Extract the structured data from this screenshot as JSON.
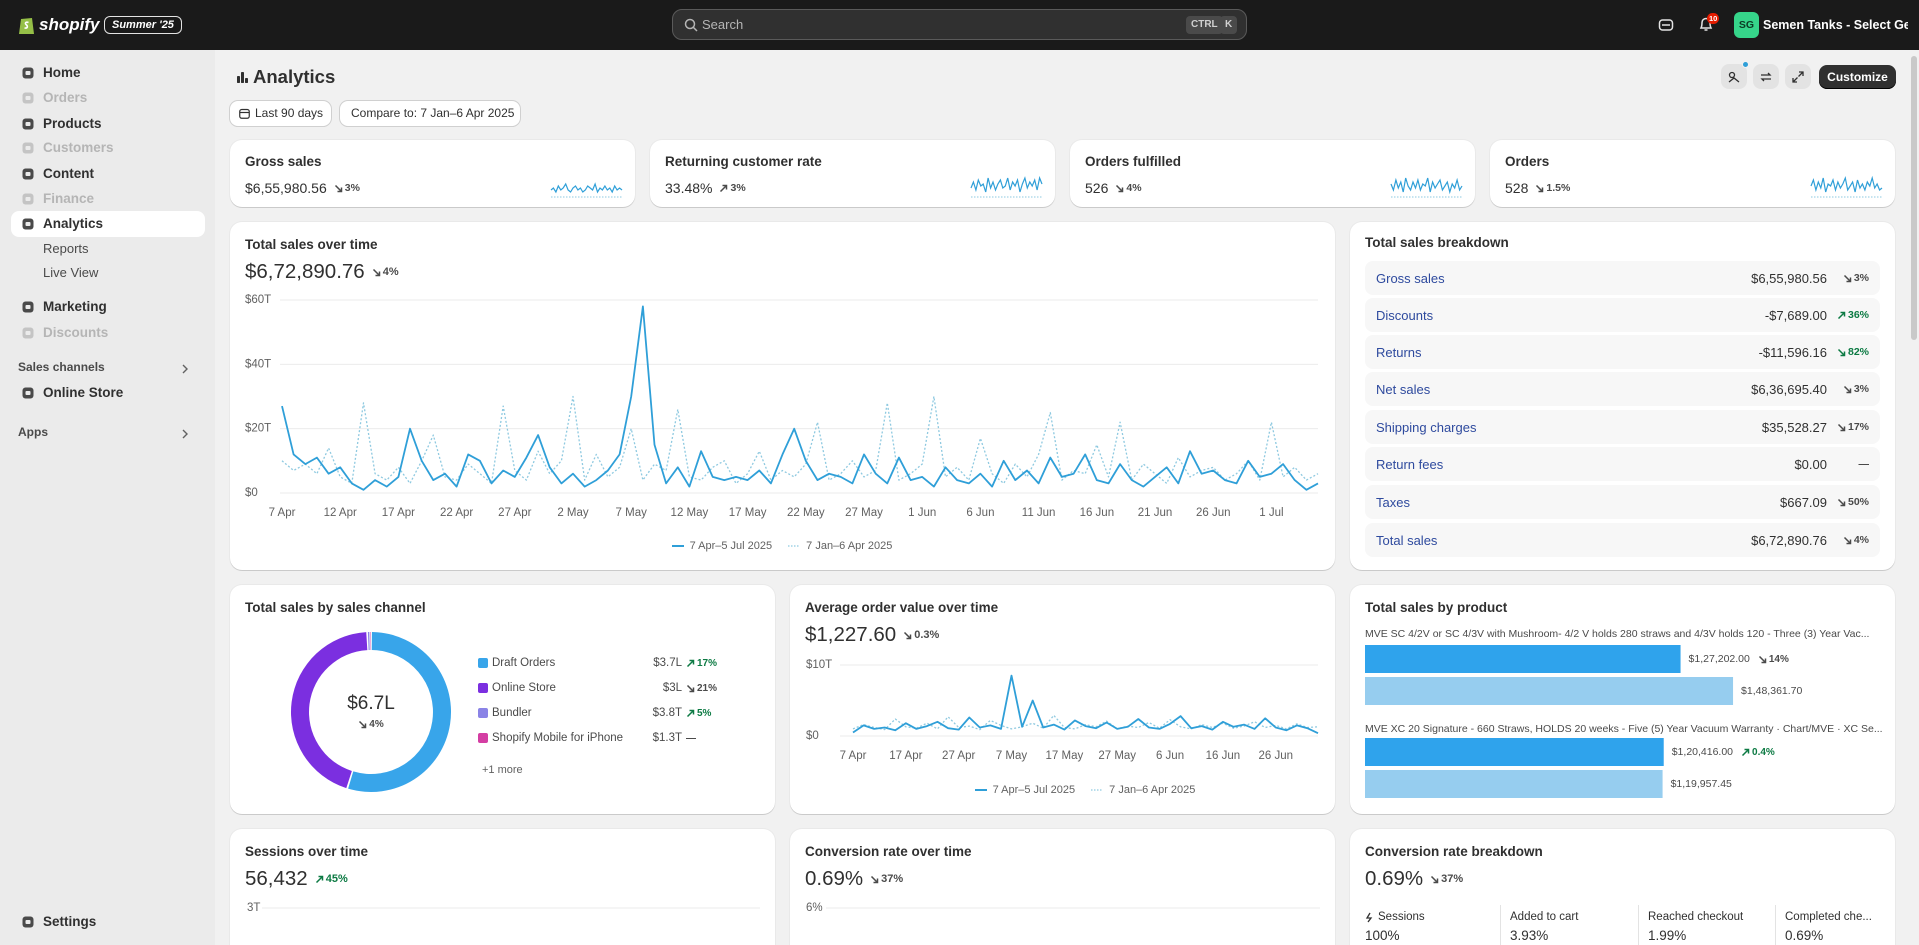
{
  "topbar": {
    "brand": "shopify",
    "badge": "Summer '25",
    "search": "Search",
    "shortcut": [
      "CTRL",
      "K"
    ],
    "notifications": 10,
    "avatar": "SG",
    "store": "Semen Tanks - Select Ge..."
  },
  "nav": [
    {
      "label": "Home"
    },
    {
      "label": "Orders",
      "disabled": true
    },
    {
      "label": "Products"
    },
    {
      "label": "Customers",
      "disabled": true
    },
    {
      "label": "Content"
    },
    {
      "label": "Finance",
      "disabled": true
    },
    {
      "label": "Analytics",
      "selected": true,
      "children": [
        "Reports",
        "Live View"
      ]
    },
    {
      "label": "Marketing"
    },
    {
      "label": "Discounts",
      "disabled": true
    }
  ],
  "sales_channels": {
    "title": "Sales channels",
    "items": [
      "Online Store"
    ]
  },
  "apps": "Apps",
  "settings": "Settings",
  "header": {
    "title": "Analytics",
    "date_range": "Last 90 days",
    "compare": "Compare to: 7 Jan–6 Apr 2025",
    "customize": "Customize"
  },
  "kpis": [
    {
      "title": "Gross sales",
      "value": "$6,55,980.56",
      "delta": {
        "text": "3%",
        "dir": "down",
        "tone": "neutral"
      },
      "color": "#2f9fd8",
      "ylim": [
        0,
        10
      ],
      "trend": [
        3,
        4,
        2,
        5,
        3,
        4,
        6,
        3,
        2,
        4,
        5,
        3,
        4,
        2,
        3,
        5,
        4,
        3,
        6,
        2,
        4,
        3,
        5,
        3,
        4,
        2,
        5,
        3,
        4,
        3
      ]
    },
    {
      "title": "Returning customer rate",
      "value": "33.48%",
      "delta": {
        "text": "3%",
        "dir": "up",
        "tone": "neutral"
      },
      "color": "#2f9fd8",
      "ylim": [
        0,
        10
      ],
      "trend": [
        4,
        7,
        3,
        8,
        5,
        6,
        2,
        9,
        4,
        7,
        3,
        6,
        8,
        4,
        5,
        9,
        3,
        7,
        5,
        8,
        2,
        6,
        9,
        4,
        7,
        5,
        8,
        3,
        9,
        6
      ]
    },
    {
      "title": "Orders fulfilled",
      "value": "526",
      "delta": {
        "text": "4%",
        "dir": "down",
        "tone": "neutral"
      },
      "color": "#2f9fd8",
      "ylim": [
        0,
        10
      ],
      "trend": [
        6,
        3,
        8,
        4,
        7,
        2,
        9,
        5,
        3,
        7,
        4,
        8,
        3,
        6,
        5,
        9,
        2,
        7,
        4,
        6,
        8,
        3,
        5,
        7,
        2,
        6,
        4,
        8,
        3,
        5
      ]
    },
    {
      "title": "Orders",
      "value": "528",
      "delta": {
        "text": "1.5%",
        "dir": "down",
        "tone": "neutral"
      },
      "color": "#2f9fd8",
      "ylim": [
        0,
        10
      ],
      "trend": [
        5,
        8,
        3,
        7,
        4,
        9,
        2,
        6,
        5,
        8,
        3,
        7,
        4,
        6,
        9,
        3,
        5,
        7,
        2,
        8,
        4,
        6,
        3,
        7,
        5,
        9,
        4,
        6,
        3,
        4
      ]
    }
  ],
  "breakdown": {
    "title": "Total sales breakdown",
    "rows": [
      {
        "label": "Gross sales",
        "value": "$6,55,980.56",
        "delta": {
          "text": "3%",
          "dir": "down",
          "tone": "neutral"
        }
      },
      {
        "label": "Discounts",
        "value": "-$7,689.00",
        "delta": {
          "text": "36%",
          "dir": "up",
          "tone": "success"
        }
      },
      {
        "label": "Returns",
        "value": "-$11,596.16",
        "delta": {
          "text": "82%",
          "dir": "down",
          "tone": "success"
        }
      },
      {
        "label": "Net sales",
        "value": "$6,36,695.40",
        "delta": {
          "text": "3%",
          "dir": "down",
          "tone": "neutral"
        }
      },
      {
        "label": "Shipping charges",
        "value": "$35,528.27",
        "delta": {
          "text": "17%",
          "dir": "down",
          "tone": "neutral"
        }
      },
      {
        "label": "Return fees",
        "value": "$0.00",
        "delta": {
          "text": "—",
          "tone": "neutral"
        }
      },
      {
        "label": "Taxes",
        "value": "$667.09",
        "delta": {
          "text": "50%",
          "dir": "down",
          "tone": "neutral"
        }
      },
      {
        "label": "Total sales",
        "value": "$6,72,890.76",
        "delta": {
          "text": "4%",
          "dir": "down",
          "tone": "neutral"
        }
      }
    ]
  },
  "conversion_breakdown": {
    "title": "Conversion rate breakdown",
    "total": "0.69%",
    "delta": {
      "text": "37%",
      "dir": "down",
      "tone": "neutral"
    },
    "steps": [
      {
        "label": "Sessions",
        "value": "100%"
      },
      {
        "label": "Added to cart",
        "value": "3.93%"
      },
      {
        "label": "Reached checkout",
        "value": "1.99%"
      },
      {
        "label": "Completed che...",
        "value": "0.69%"
      }
    ]
  },
  "chart_data": [
    {
      "type": "line",
      "title": "Total sales over time",
      "total": "$6,72,890.76",
      "delta": {
        "text": "4%",
        "dir": "down",
        "tone": "neutral"
      },
      "categories": [
        "7 Apr",
        null,
        null,
        null,
        null,
        "12 Apr",
        null,
        null,
        null,
        null,
        "17 Apr",
        null,
        null,
        null,
        null,
        "22 Apr",
        null,
        null,
        null,
        null,
        "27 Apr",
        null,
        null,
        null,
        null,
        "2 May",
        null,
        null,
        null,
        null,
        "7 May",
        null,
        null,
        null,
        null,
        "12 May",
        null,
        null,
        null,
        null,
        "17 May",
        null,
        null,
        null,
        null,
        "22 May",
        null,
        null,
        null,
        null,
        "27 May",
        null,
        null,
        null,
        null,
        "1 Jun",
        null,
        null,
        null,
        null,
        "6 Jun",
        null,
        null,
        null,
        null,
        "11 Jun",
        null,
        null,
        null,
        null,
        "16 Jun",
        null,
        null,
        null,
        null,
        "21 Jun",
        null,
        null,
        null,
        null,
        "26 Jun",
        null,
        null,
        null,
        null,
        "1 Jul",
        null,
        null,
        null,
        null
      ],
      "ylim": [
        0,
        60
      ],
      "yticks": [
        {
          "value": 0,
          "label": "$0"
        },
        {
          "value": 20,
          "label": "$20T"
        },
        {
          "value": 40,
          "label": "$40T"
        },
        {
          "value": 60,
          "label": "$60T"
        }
      ],
      "grid": true,
      "series": [
        {
          "name": "7 Apr–5 Jul 2025",
          "color": "#2f9fd8",
          "style": "solid",
          "values": [
            27,
            12,
            9,
            11,
            6,
            8,
            3,
            1,
            4,
            2,
            5,
            20,
            10,
            4,
            6,
            2,
            12,
            10,
            3,
            7,
            5,
            11,
            18,
            8,
            3,
            6,
            2,
            4,
            7,
            12,
            30,
            58,
            15,
            3,
            8,
            2,
            13,
            5,
            4,
            5,
            4,
            7,
            3,
            12,
            20,
            10,
            4,
            6,
            5,
            3,
            12,
            6,
            3,
            11,
            4,
            5,
            2,
            8,
            4,
            3,
            6,
            2,
            10,
            4,
            7,
            3,
            11,
            5,
            6,
            12,
            4,
            3,
            9,
            4,
            2,
            5,
            8,
            3,
            13,
            6,
            7,
            4,
            3,
            10,
            5,
            6,
            9,
            4,
            1,
            3
          ]
        },
        {
          "name": "7 Jan–6 Apr 2025",
          "color": "#8ec9e0",
          "style": "dotted",
          "values": [
            10,
            7,
            9,
            6,
            14,
            5,
            3,
            28,
            6,
            4,
            8,
            3,
            10,
            18,
            5,
            4,
            9,
            6,
            3,
            27,
            7,
            4,
            13,
            6,
            10,
            30,
            4,
            12,
            5,
            8,
            20,
            4,
            9,
            7,
            26,
            5,
            4,
            8,
            10,
            3,
            6,
            13,
            4,
            7,
            5,
            9,
            22,
            4,
            6,
            10,
            5,
            7,
            28,
            4,
            6,
            9,
            30,
            5,
            8,
            4,
            17,
            6,
            3,
            9,
            5,
            12,
            25,
            4,
            7,
            6,
            15,
            5,
            22,
            4,
            9,
            6,
            3,
            11,
            5,
            7,
            8,
            4,
            6,
            10,
            4,
            22,
            5,
            8,
            4,
            6
          ]
        }
      ]
    },
    {
      "type": "pie",
      "title": "Total sales by sales channel",
      "center_value": "$6.7L",
      "delta": {
        "text": "4%",
        "dir": "down",
        "tone": "neutral"
      },
      "categories": [
        "Draft Orders",
        "Online Store",
        "Bundler",
        "Shopify Mobile for iPhone"
      ],
      "values": [
        370,
        300,
        3.8,
        1.3
      ],
      "value_labels": [
        "$3.7L",
        "$3L",
        "$3.8T",
        "$1.3T"
      ],
      "colors": [
        "#38a5ea",
        "#7b2fe0",
        "#8a83e6",
        "#d43ea3"
      ],
      "changes": [
        {
          "text": "17%",
          "dir": "up",
          "tone": "success"
        },
        {
          "text": "21%",
          "dir": "down",
          "tone": "neutral"
        },
        {
          "text": "5%",
          "dir": "up",
          "tone": "success"
        },
        {
          "text": "—",
          "tone": "neutral"
        }
      ],
      "more": "+1 more"
    },
    {
      "type": "line",
      "title": "Average order value over time",
      "total": "$1,227.60",
      "delta": {
        "text": "0.3%",
        "dir": "down",
        "tone": "neutral"
      },
      "categories": [
        "7 Apr",
        null,
        null,
        null,
        null,
        "17 Apr",
        null,
        null,
        null,
        null,
        "27 Apr",
        null,
        null,
        null,
        null,
        "7 May",
        null,
        null,
        null,
        null,
        "17 May",
        null,
        null,
        null,
        null,
        "27 May",
        null,
        null,
        null,
        null,
        "6 Jun",
        null,
        null,
        null,
        null,
        "16 Jun",
        null,
        null,
        null,
        null,
        "26 Jun",
        null,
        null,
        null,
        null
      ],
      "ylim": [
        0,
        10
      ],
      "yticks": [
        {
          "value": 0,
          "label": "$0"
        },
        {
          "value": 10,
          "label": "$10T"
        }
      ],
      "grid": true,
      "series": [
        {
          "name": "7 Apr–5 Jul 2025",
          "color": "#2f9fd8",
          "style": "solid",
          "values": [
            0.5,
            1.5,
            1,
            1.2,
            0.8,
            1.8,
            1,
            1.4,
            2,
            1.1,
            0.9,
            2.6,
            1.2,
            1.5,
            1,
            8.5,
            1.3,
            5,
            1.2,
            1.6,
            0.9,
            2.2,
            1.4,
            1.1,
            1.9,
            1,
            1.3,
            2.4,
            1.2,
            1,
            1.7,
            2.8,
            1.1,
            1.4,
            0.9,
            2,
            1.3,
            1.6,
            1,
            2.5,
            1.2,
            0.8,
            1.5,
            1.1,
            0.4
          ]
        },
        {
          "name": "7 Jan–6 Apr 2025",
          "color": "#8ec9e0",
          "style": "dotted",
          "values": [
            1,
            1.6,
            1.2,
            0.9,
            2.4,
            1.3,
            1.1,
            1.8,
            1,
            2.7,
            1.2,
            1.4,
            0.9,
            2.2,
            1.5,
            1,
            1.3,
            1.8,
            1.1,
            2.9,
            1.2,
            1,
            1.6,
            1.3,
            2.1,
            1,
            1.4,
            1.2,
            1.9,
            1.1,
            2.3,
            1.3,
            1,
            1.6,
            1.2,
            1.8,
            1.1,
            1.4,
            2,
            1.2,
            1.5,
            1,
            1.7,
            1.2,
            1.3
          ]
        }
      ]
    },
    {
      "type": "bar",
      "orientation": "horizontal",
      "title": "Total sales by product",
      "categories": [
        "MVE SC 4/2V or SC 4/3V with Mushroom- 4/2 V holds 280 straws and 4/3V holds 120 - Three (3) Year Vac...",
        "MVE XC 20 Signature - 660 Straws, HOLDS 20 weeks - Five (5) Year Vacuum Warranty · Chart/MVE · XC Se..."
      ],
      "xlim": [
        0,
        207600
      ],
      "series": [
        {
          "color": "#2fa3ec",
          "values": [
            127202.0,
            120416.0
          ],
          "value_labels": [
            "$1,27,202.00",
            "$1,20,416.00"
          ],
          "deltas": [
            {
              "text": "14%",
              "dir": "down",
              "tone": "neutral"
            },
            {
              "text": "0.4%",
              "dir": "up",
              "tone": "success"
            }
          ]
        },
        {
          "color": "#96cdef",
          "values": [
            148361.7,
            119957.45
          ],
          "value_labels": [
            "$1,48,361.70",
            "$1,19,957.45"
          ]
        }
      ]
    },
    {
      "type": "line",
      "title": "Sessions over time",
      "total": "56,432",
      "delta": {
        "text": "45%",
        "dir": "up",
        "tone": "success"
      },
      "ylim": [
        0,
        3
      ],
      "yticks": [
        {
          "value": 3,
          "label": "3T"
        }
      ],
      "grid": true
    },
    {
      "type": "line",
      "title": "Conversion rate over time",
      "total": "0.69%",
      "delta": {
        "text": "37%",
        "dir": "down",
        "tone": "neutral"
      },
      "ylim": [
        0,
        6
      ],
      "yticks": [
        {
          "value": 6,
          "label": "6%"
        }
      ],
      "grid": true
    }
  ]
}
